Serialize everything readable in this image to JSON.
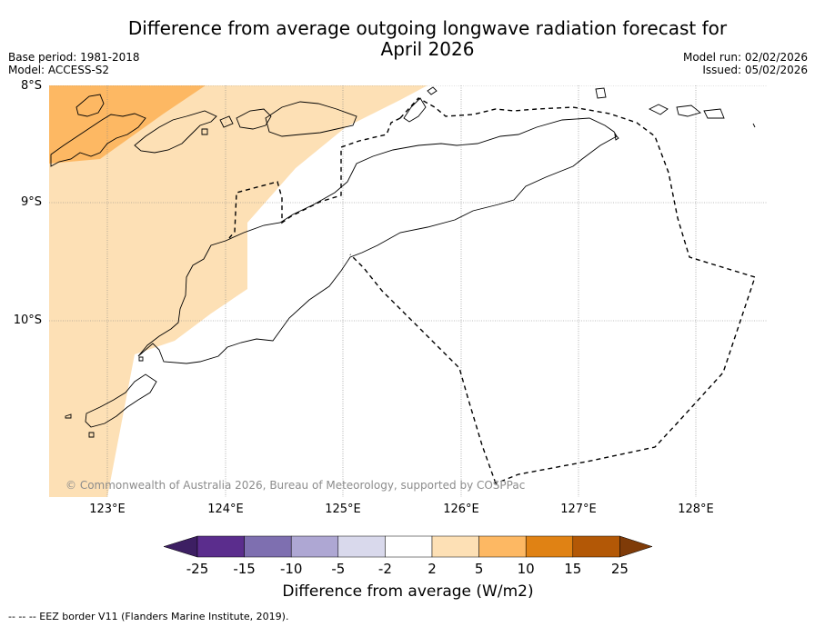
{
  "header": {
    "title_line1": "Difference from average outgoing longwave radiation forecast for",
    "title_line2": "April 2026",
    "base_period": "Base period: 1981-2018",
    "model": "Model: ACCESS-S2",
    "model_run": "Model run: 02/02/2026",
    "issued": "Issued: 05/02/2026"
  },
  "map": {
    "lat_labels": [
      "8°S",
      "9°S",
      "10°S"
    ],
    "lon_labels": [
      "123°E",
      "124°E",
      "125°E",
      "126°E",
      "127°E",
      "128°E"
    ],
    "copyright": "© Commonwealth of Australia 2026, Bureau of Meteorology, supported by COSPPac",
    "shading_categories": [
      "2 to 5",
      "5 to 10"
    ]
  },
  "colorbar": {
    "ticks": [
      "-25",
      "-15",
      "-10",
      "-5",
      "-2",
      "2",
      "5",
      "10",
      "15",
      "25"
    ],
    "colors": [
      "#3d1f63",
      "#5b2d8d",
      "#7e6fb0",
      "#aea7d3",
      "#d9d9ec",
      "#ffffff",
      "#fde0b5",
      "#fdb863",
      "#e08214",
      "#b35806",
      "#7f3b08"
    ],
    "label": "Difference from average (W/m2)"
  },
  "footer": {
    "eez_note": "--  --  -- EEZ border V11 (Flanders Marine Institute, 2019)."
  }
}
